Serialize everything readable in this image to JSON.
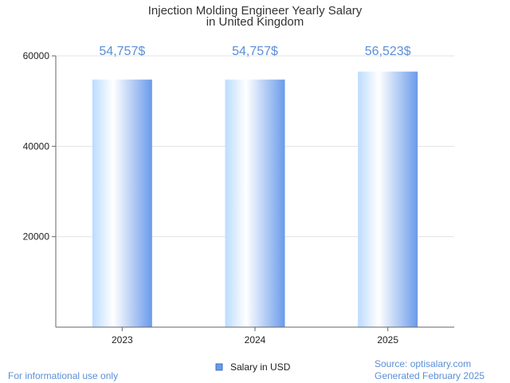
{
  "chart_data": {
    "type": "bar",
    "title_lines": [
      "Injection Molding Engineer Yearly Salary",
      "in United Kingdom"
    ],
    "categories": [
      "2023",
      "2024",
      "2025"
    ],
    "series": [
      {
        "name": "Salary in USD",
        "values": [
          54757,
          54757,
          56523
        ]
      }
    ],
    "data_labels": [
      "54,757$",
      "54,757$",
      "56,523$"
    ],
    "y_ticks": [
      "20000",
      "40000",
      "60000"
    ],
    "ylim": [
      0,
      60000
    ],
    "grid": true,
    "legend": "bottom-center",
    "colors": {
      "bar_edge": "#6a9bea",
      "bar_light": "#bcdcff",
      "bar_center": "#ffffff",
      "label": "#5b8fd6"
    }
  },
  "footer": {
    "left": "For informational use only",
    "source": "Source: optisalary.com",
    "generated": "Generated February 2025"
  }
}
